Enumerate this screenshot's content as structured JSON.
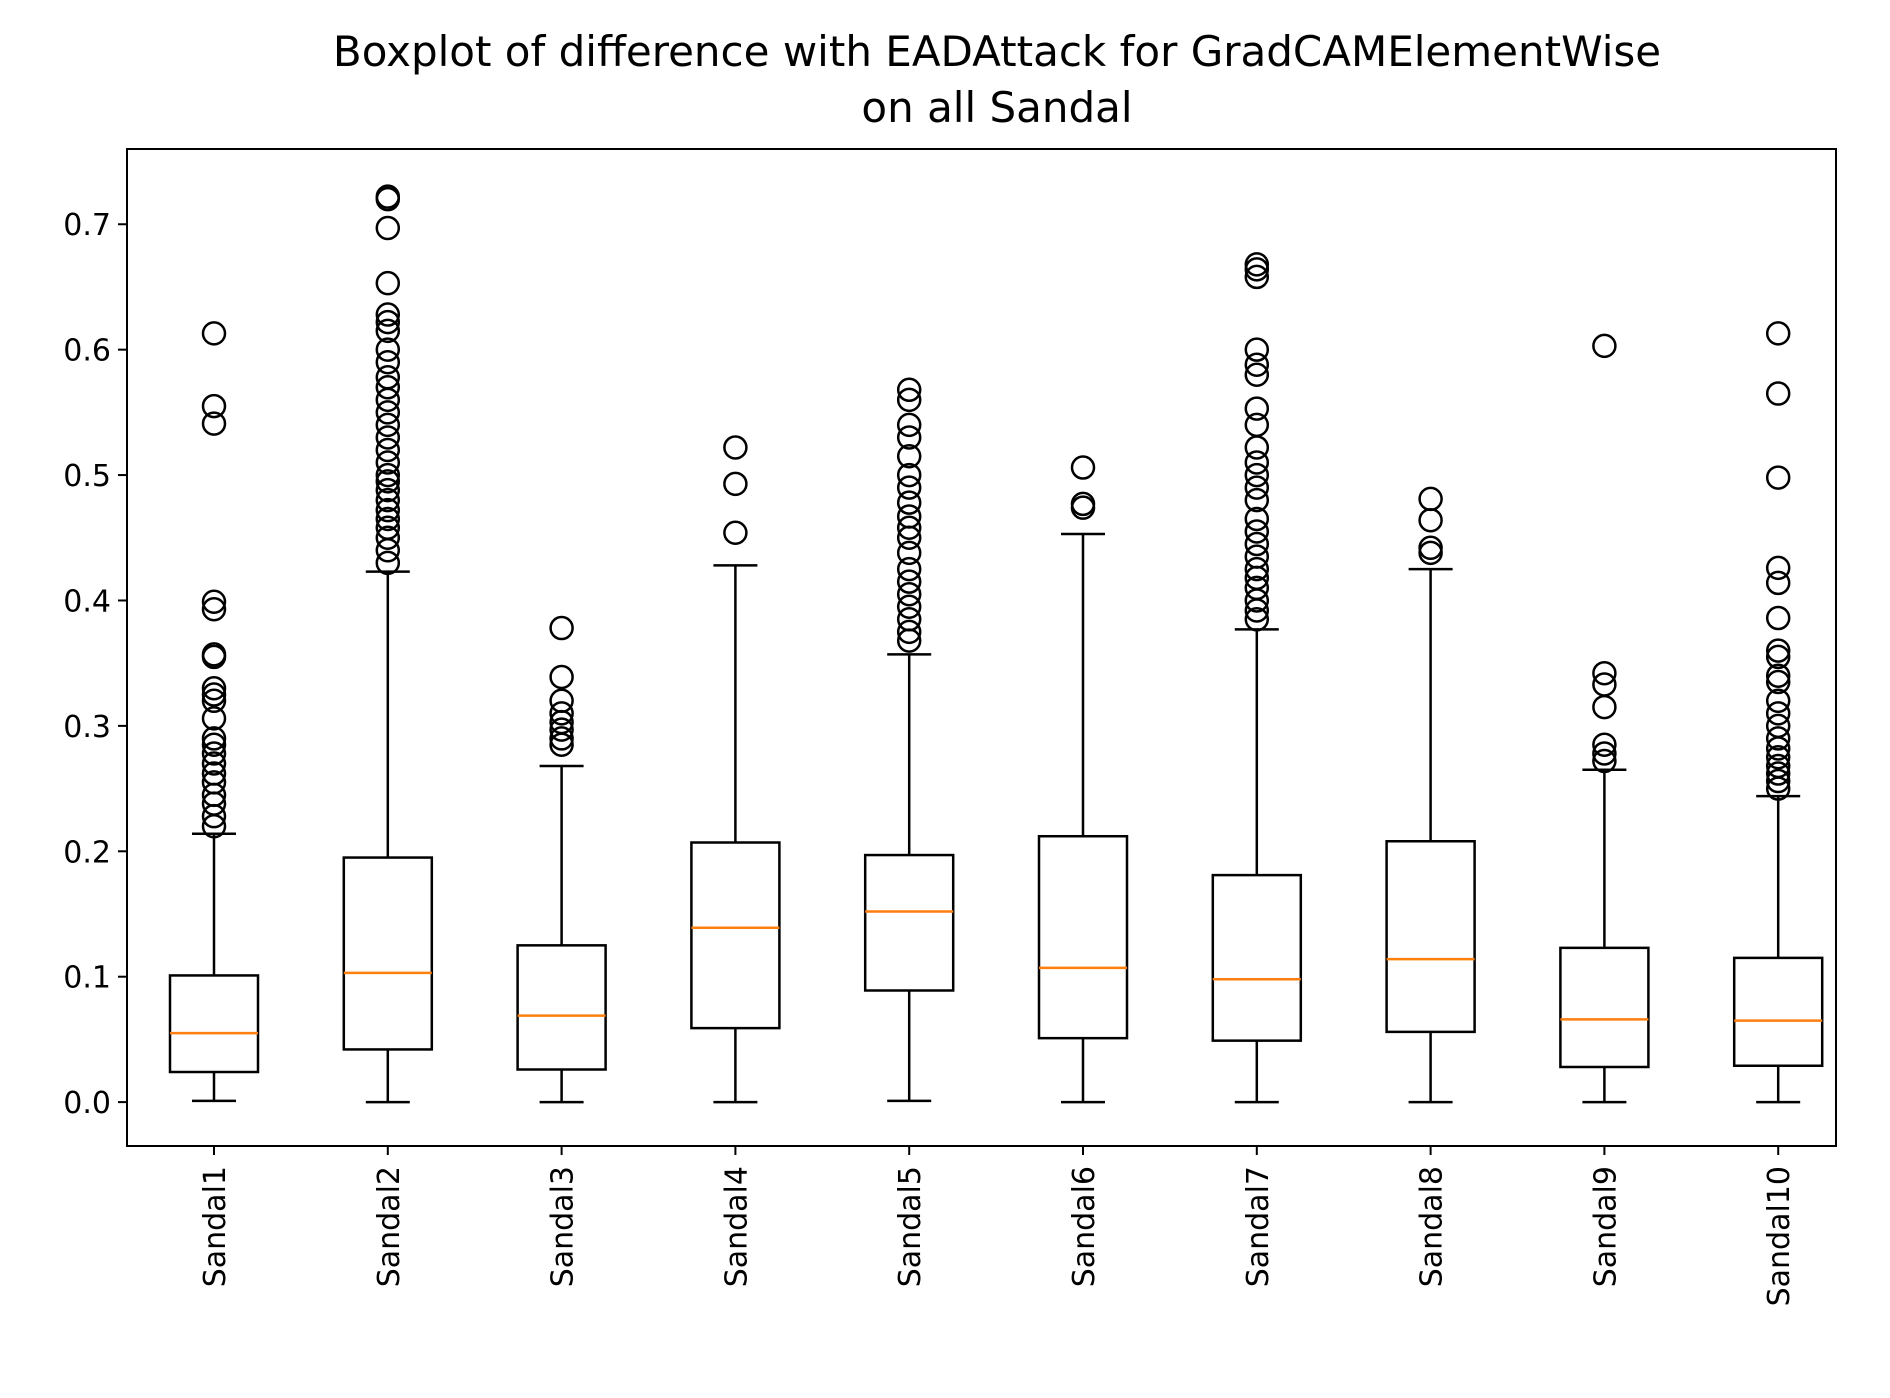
{
  "chart_data": {
    "type": "boxplot",
    "title_lines": [
      "Boxplot of difference with EADAttack for GradCAMElementWise",
      "on all Sandal"
    ],
    "xlabel": "",
    "ylabel": "",
    "ylim": [
      -0.035,
      0.76
    ],
    "yticks": [
      0.0,
      0.1,
      0.2,
      0.3,
      0.4,
      0.5,
      0.6,
      0.7
    ],
    "ytick_labels": [
      "0.0",
      "0.1",
      "0.2",
      "0.3",
      "0.4",
      "0.5",
      "0.6",
      "0.7"
    ],
    "grid": false,
    "legend": "none",
    "x_tick_rotation": 90,
    "colors": {
      "box": "#000000",
      "median": "#ff7f0e",
      "flier": "#000000"
    },
    "categories": [
      "Sandal1",
      "Sandal2",
      "Sandal3",
      "Sandal4",
      "Sandal5",
      "Sandal6",
      "Sandal7",
      "Sandal8",
      "Sandal9",
      "Sandal10"
    ],
    "boxes": [
      {
        "whislo": 0.001,
        "q1": 0.024,
        "med": 0.055,
        "q3": 0.101,
        "whishi": 0.214,
        "fliers": [
          0.613,
          0.555,
          0.541,
          0.399,
          0.393,
          0.357,
          0.355,
          0.33,
          0.325,
          0.32,
          0.306,
          0.29,
          0.285,
          0.278,
          0.27,
          0.262,
          0.255,
          0.245,
          0.238,
          0.228,
          0.22
        ]
      },
      {
        "whislo": 0.0,
        "q1": 0.042,
        "med": 0.103,
        "q3": 0.195,
        "whishi": 0.423,
        "fliers": [
          0.722,
          0.72,
          0.697,
          0.653,
          0.628,
          0.622,
          0.615,
          0.6,
          0.59,
          0.578,
          0.57,
          0.56,
          0.55,
          0.54,
          0.53,
          0.52,
          0.51,
          0.5,
          0.495,
          0.488,
          0.48,
          0.472,
          0.465,
          0.458,
          0.45,
          0.44,
          0.43
        ]
      },
      {
        "whislo": 0.0,
        "q1": 0.026,
        "med": 0.069,
        "q3": 0.125,
        "whishi": 0.268,
        "fliers": [
          0.378,
          0.339,
          0.32,
          0.31,
          0.303,
          0.297,
          0.29,
          0.285
        ]
      },
      {
        "whislo": 0.0,
        "q1": 0.059,
        "med": 0.139,
        "q3": 0.207,
        "whishi": 0.428,
        "fliers": [
          0.522,
          0.493,
          0.454
        ]
      },
      {
        "whislo": 0.001,
        "q1": 0.089,
        "med": 0.152,
        "q3": 0.197,
        "whishi": 0.357,
        "fliers": [
          0.568,
          0.56,
          0.54,
          0.53,
          0.515,
          0.5,
          0.49,
          0.478,
          0.467,
          0.458,
          0.45,
          0.438,
          0.425,
          0.415,
          0.405,
          0.395,
          0.385,
          0.375,
          0.368
        ]
      },
      {
        "whislo": 0.0,
        "q1": 0.051,
        "med": 0.107,
        "q3": 0.212,
        "whishi": 0.453,
        "fliers": [
          0.506,
          0.477,
          0.474
        ]
      },
      {
        "whislo": 0.0,
        "q1": 0.049,
        "med": 0.098,
        "q3": 0.181,
        "whishi": 0.377,
        "fliers": [
          0.668,
          0.664,
          0.658,
          0.6,
          0.588,
          0.58,
          0.553,
          0.54,
          0.522,
          0.51,
          0.5,
          0.49,
          0.48,
          0.465,
          0.455,
          0.445,
          0.435,
          0.425,
          0.418,
          0.41,
          0.4,
          0.392,
          0.385
        ]
      },
      {
        "whislo": 0.0,
        "q1": 0.056,
        "med": 0.114,
        "q3": 0.208,
        "whishi": 0.425,
        "fliers": [
          0.481,
          0.464,
          0.442,
          0.438
        ]
      },
      {
        "whislo": 0.0,
        "q1": 0.028,
        "med": 0.066,
        "q3": 0.123,
        "whishi": 0.265,
        "fliers": [
          0.603,
          0.342,
          0.333,
          0.315,
          0.285,
          0.278,
          0.272
        ]
      },
      {
        "whislo": 0.0,
        "q1": 0.029,
        "med": 0.065,
        "q3": 0.115,
        "whishi": 0.244,
        "fliers": [
          0.613,
          0.565,
          0.498,
          0.426,
          0.414,
          0.386,
          0.36,
          0.355,
          0.34,
          0.335,
          0.32,
          0.31,
          0.3,
          0.29,
          0.282,
          0.275,
          0.268,
          0.262,
          0.256,
          0.25
        ]
      }
    ]
  }
}
